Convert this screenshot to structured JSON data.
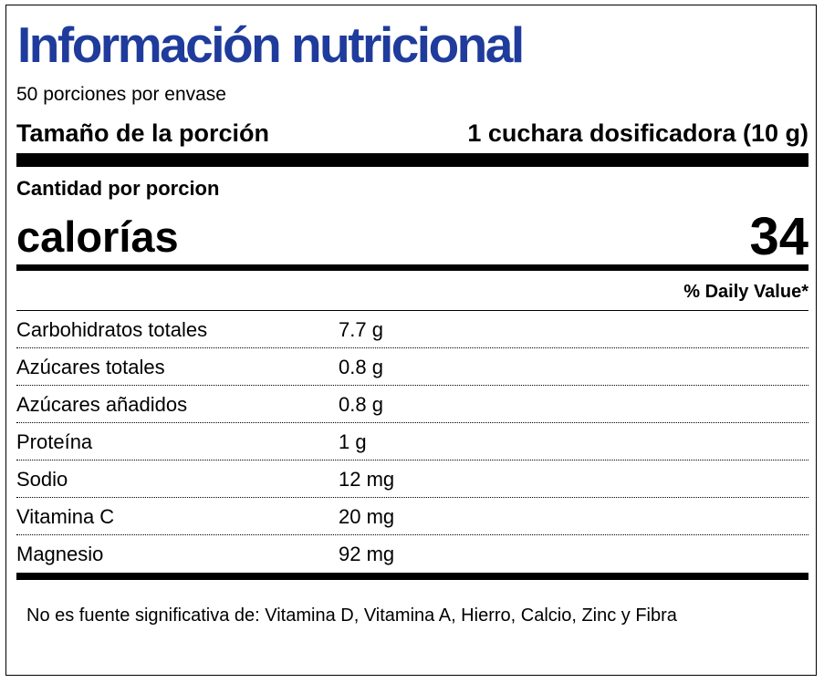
{
  "label": {
    "title": "Información nutricional",
    "servings_per_container": "50 porciones por envase",
    "serving_size_label": "Tamaño de la porción",
    "serving_size_value": "1 cuchara dosificadora (10 g)",
    "amount_per_serving": "Cantidad por porcion",
    "calories_label": "calorías",
    "calories_value": "34",
    "daily_value_header": "% Daily Value*",
    "nutrients": [
      {
        "name": "Carbohidratos totales",
        "amount": "7.7 g"
      },
      {
        "name": "Azúcares totales",
        "amount": "0.8 g"
      },
      {
        "name": "Azúcares añadidos",
        "amount": "0.8 g"
      },
      {
        "name": "Proteína",
        "amount": "1 g"
      },
      {
        "name": "Sodio",
        "amount": "12 mg"
      },
      {
        "name": "Vitamina C",
        "amount": "20 mg"
      },
      {
        "name": "Magnesio",
        "amount": "92 mg"
      }
    ],
    "footnote": "No es fuente significativa de: Vitamina D, Vitamina A, Hierro, Calcio, Zinc y Fibra"
  },
  "colors": {
    "title": "#1f3c9c",
    "text": "#000000",
    "background": "#ffffff"
  }
}
